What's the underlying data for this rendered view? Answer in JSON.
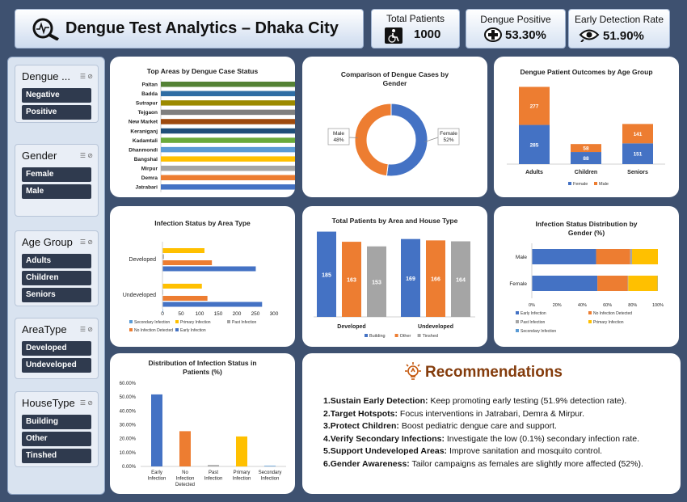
{
  "header": {
    "title": "Dengue Test Analytics – Dhaka City",
    "kpis": [
      {
        "label": "Total Patients",
        "value": "1000",
        "icon": "wheelchair-icon"
      },
      {
        "label": "Dengue Positive",
        "value": "53.30%",
        "icon": "medical-cross-icon"
      },
      {
        "label": "Early Detection Rate",
        "value": "51.90%",
        "icon": "eye-icon"
      }
    ]
  },
  "slicers": [
    {
      "title": "Dengue ...",
      "items": [
        "Negative",
        "Positive"
      ]
    },
    {
      "title": "Gender",
      "items": [
        "Female",
        "Male"
      ]
    },
    {
      "title": "Age Group",
      "items": [
        "Adults",
        "Children",
        "Seniors"
      ]
    },
    {
      "title": "AreaType",
      "items": [
        "Developed",
        "Undeveloped"
      ]
    },
    {
      "title": "HouseType",
      "items": [
        "Building",
        "Other",
        "Tinshed"
      ]
    }
  ],
  "chart_data": [
    {
      "id": "top-areas",
      "type": "bar",
      "title": "Top Areas by Dengue Case Status",
      "categories": [
        "Paltan",
        "Badda",
        "Sutrapur",
        "Tejgaon",
        "New Market",
        "Keraniganj",
        "Kadamtali",
        "Dhanmondi",
        "Bangshal",
        "Mirpur",
        "Demra",
        "Jatrabari"
      ],
      "values": [
        31,
        31,
        31,
        31,
        33,
        33,
        34,
        34,
        34,
        34,
        38,
        38
      ],
      "colors": [
        "#548235",
        "#2e6da4",
        "#9c8a00",
        "#7f7f7f",
        "#9e4a0e",
        "#1f4e79",
        "#6aaa3a",
        "#5b9bd5",
        "#ffc000",
        "#a5a5a5",
        "#ed7d31",
        "#4472c4"
      ]
    },
    {
      "id": "gender-donut",
      "type": "pie",
      "title": "Comparison of Dengue Cases by Gender",
      "categories": [
        "Female",
        "Male"
      ],
      "values": [
        52,
        48
      ],
      "labels": [
        "52%",
        "48%"
      ],
      "colors": [
        "#4472c4",
        "#ed7d31"
      ]
    },
    {
      "id": "age-outcomes",
      "type": "bar",
      "title": "Dengue Patient Outcomes by Age Group",
      "categories": [
        "Adults",
        "Children",
        "Seniors"
      ],
      "series": [
        {
          "name": "Female",
          "values": [
            285,
            88,
            151
          ],
          "color": "#4472c4"
        },
        {
          "name": "Male",
          "values": [
            277,
            58,
            141
          ],
          "color": "#ed7d31"
        }
      ]
    },
    {
      "id": "infection-area",
      "type": "bar",
      "title": "Infection Status by Area Type",
      "categories": [
        "Developed",
        "Undeveloped"
      ],
      "xticks": [
        "0",
        "50",
        "100",
        "150",
        "200",
        "250",
        "300"
      ],
      "xlim": [
        0,
        300
      ],
      "series": [
        {
          "name": "Secondary Infection",
          "values": [
            1,
            0
          ],
          "color": "#5b9bd5"
        },
        {
          "name": "Primary Infection",
          "values": [
            113,
            106
          ],
          "color": "#ffc000"
        },
        {
          "name": "Past Infection",
          "values": [
            4,
            2
          ],
          "color": "#a5a5a5"
        },
        {
          "name": "No Infection Detected",
          "values": [
            133,
            121
          ],
          "color": "#ed7d31"
        },
        {
          "name": "Early Infection",
          "values": [
            251,
            268
          ],
          "color": "#4472c4"
        }
      ]
    },
    {
      "id": "house-type",
      "type": "bar",
      "title": "Total Patients by Area and House Type",
      "groups": [
        "Developed",
        "Undeveloped"
      ],
      "series": [
        {
          "name": "Building",
          "values": [
            185,
            169
          ],
          "color": "#4472c4"
        },
        {
          "name": "Other",
          "values": [
            163,
            166
          ],
          "color": "#ed7d31"
        },
        {
          "name": "Tinshed",
          "values": [
            153,
            164
          ],
          "color": "#a5a5a5"
        }
      ]
    },
    {
      "id": "gender-infection",
      "type": "bar",
      "title": "Infection Status Distribution by Gender (%)",
      "categories": [
        "Male",
        "Female"
      ],
      "xticks": [
        "0%",
        "20%",
        "40%",
        "60%",
        "80%",
        "100%"
      ],
      "series": [
        {
          "name": "Early Infection",
          "values": [
            51,
            52
          ],
          "color": "#4472c4"
        },
        {
          "name": "No Infection Detected",
          "values": [
            27,
            24
          ],
          "color": "#ed7d31"
        },
        {
          "name": "Past Infection",
          "values": [
            1.5,
            0.5
          ],
          "color": "#a5a5a5"
        },
        {
          "name": "Primary Infection",
          "values": [
            20.5,
            23.3
          ],
          "color": "#ffc000"
        },
        {
          "name": "Secondary Infection",
          "values": [
            0,
            0.2
          ],
          "color": "#5b9bd5"
        }
      ]
    },
    {
      "id": "infection-distribution",
      "type": "bar",
      "title": "Distribution of Infection Status in Patients (%)",
      "categories": [
        "Early Infection",
        "No Infection Detected",
        "Past Infection",
        "Primary Infection",
        "Secondary Infection"
      ],
      "category_lines": [
        [
          "Early",
          "Infection"
        ],
        [
          "No",
          "Infection",
          "Detected"
        ],
        [
          "Past",
          "Infection"
        ],
        [
          "Primary",
          "Infection"
        ],
        [
          "Secondary",
          "Infection"
        ]
      ],
      "values": [
        51.9,
        25.4,
        1.0,
        21.6,
        0.1
      ],
      "yticks": [
        "60.00%",
        "50.00%",
        "40.00%",
        "30.00%",
        "20.00%",
        "10.00%",
        "0.00%"
      ],
      "ylim": [
        0,
        60
      ],
      "colors": [
        "#4472c4",
        "#ed7d31",
        "#a5a5a5",
        "#ffc000",
        "#5b9bd5"
      ]
    }
  ],
  "recommendations": {
    "title": "Recommendations",
    "items": [
      {
        "head": "1.Sustain Early Detection:",
        "text": " Keep promoting early testing (51.9% detection rate)."
      },
      {
        "head": "2.Target Hotspots:",
        "text": " Focus interventions in Jatrabari, Demra & Mirpur."
      },
      {
        "head": "3.Protect Children:",
        "text": " Boost pediatric dengue care and support."
      },
      {
        "head": "4.Verify Secondary Infections:",
        "text": " Investigate the low (0.1%) secondary infection rate."
      },
      {
        "head": "5.Support Undeveloped Areas:",
        "text": " Improve sanitation and mosquito control."
      },
      {
        "head": "6.Gender Awareness:",
        "text": " Tailor campaigns as females are slightly more affected (52%)."
      }
    ]
  }
}
